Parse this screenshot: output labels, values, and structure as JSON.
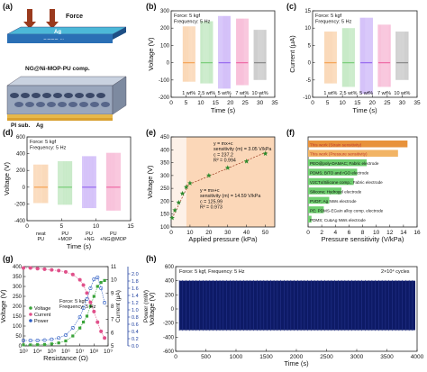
{
  "panels": [
    {
      "id": "a",
      "letter": "(a)"
    },
    {
      "id": "b",
      "letter": "(b)"
    },
    {
      "id": "c",
      "letter": "(c)"
    },
    {
      "id": "d",
      "letter": "(d)"
    },
    {
      "id": "e",
      "letter": "(e)"
    },
    {
      "id": "f",
      "letter": "(f)"
    },
    {
      "id": "g",
      "letter": "(g)"
    },
    {
      "id": "h",
      "letter": "(h)"
    }
  ],
  "schematic": {
    "force_label": "Force",
    "ag_label": "Ag",
    "ptfe_label": "PTFE film",
    "composite_label": "NG@Ni-MOP-PU comp.",
    "substrate_label": "PI sub.",
    "ag_bottom_label": "Ag"
  },
  "colors": {
    "orange": "#f5a65b",
    "green": "#7dce7d",
    "purple": "#9b6ff0",
    "pink": "#ef6fa8",
    "gray": "#8c8c8c",
    "brown": "#9a3a1e",
    "darkgreen": "#2e8b2e",
    "blue": "#1f2f8f",
    "navy": "#0d1a66"
  },
  "chart_data": [
    {
      "panel": "b",
      "type": "bar",
      "annotations": [
        "Force: 5 kgf",
        "Frequency: 5 Hz"
      ],
      "xlabel": "Time (s)",
      "ylabel": "Voltage (V)",
      "xlim": [
        0,
        35
      ],
      "ylim": [
        -200,
        300
      ],
      "xticks": [
        0,
        5,
        10,
        15,
        20,
        25,
        30,
        35
      ],
      "yticks": [
        -200,
        -100,
        0,
        100,
        200,
        300
      ],
      "series": [
        {
          "name": "1 wt%",
          "x_start": 4,
          "x_end": 8,
          "max": 210,
          "min": -110
        },
        {
          "name": "2.5 wt%",
          "x_start": 10,
          "x_end": 14,
          "max": 240,
          "min": -120
        },
        {
          "name": "5 wt%",
          "x_start": 16,
          "x_end": 20,
          "max": 270,
          "min": -150
        },
        {
          "name": "7 wt%",
          "x_start": 22,
          "x_end": 26,
          "max": 255,
          "min": -130
        },
        {
          "name": "10 wt%",
          "x_start": 28,
          "x_end": 32,
          "max": 190,
          "min": -100
        }
      ]
    },
    {
      "panel": "c",
      "type": "bar",
      "annotations": [
        "Force: 5 kgf",
        "Frequency: 5 Hz"
      ],
      "xlabel": "Time (s)",
      "ylabel": "Current (μA)",
      "xlim": [
        0,
        35
      ],
      "ylim": [
        -10,
        15
      ],
      "xticks": [
        0,
        5,
        10,
        15,
        20,
        25,
        30,
        35
      ],
      "yticks": [
        -10,
        -5,
        0,
        5,
        10,
        15
      ],
      "series": [
        {
          "name": "1 wt%",
          "x_start": 4,
          "x_end": 8,
          "max": 9,
          "min": -6
        },
        {
          "name": "2.5 wt%",
          "x_start": 10,
          "x_end": 14,
          "max": 10,
          "min": -7
        },
        {
          "name": "5 wt%",
          "x_start": 16,
          "x_end": 20,
          "max": 13,
          "min": -9
        },
        {
          "name": "7 wt%",
          "x_start": 22,
          "x_end": 26,
          "max": 11,
          "min": -7
        },
        {
          "name": "10 wt%",
          "x_start": 28,
          "x_end": 32,
          "max": 9,
          "min": -5
        }
      ]
    },
    {
      "panel": "d",
      "type": "bar",
      "annotations": [
        "Force: 5 kgf",
        "Frequency: 5 Hz"
      ],
      "xlabel": "Time (s)",
      "ylabel": "Voltage (V)",
      "xlim": [
        0,
        15
      ],
      "ylim": [
        -400,
        600
      ],
      "xticks": [
        0,
        5,
        10,
        15
      ],
      "yticks": [
        -400,
        -200,
        0,
        200,
        400,
        600
      ],
      "series": [
        {
          "name_lines": [
            "neat",
            "PU"
          ],
          "x_start": 1,
          "x_end": 3,
          "max": 270,
          "min": -190
        },
        {
          "name_lines": [
            "PU",
            "+MOP"
          ],
          "x_start": 4.5,
          "x_end": 6.5,
          "max": 310,
          "min": -210
        },
        {
          "name_lines": [
            "PU",
            "+NG"
          ],
          "x_start": 8,
          "x_end": 10,
          "max": 370,
          "min": -250
        },
        {
          "name_lines": [
            "PU",
            "+NG@MOP"
          ],
          "x_start": 11.5,
          "x_end": 13.5,
          "max": 410,
          "min": -280
        }
      ]
    },
    {
      "panel": "e",
      "type": "scatter",
      "xlabel": "Applied pressure (kPa)",
      "ylabel": "Voltage (V)",
      "xlim": [
        0,
        55
      ],
      "ylim": [
        100,
        450
      ],
      "xticks": [
        0,
        10,
        20,
        30,
        40,
        50
      ],
      "yticks": [
        100,
        150,
        200,
        250,
        300,
        350,
        400,
        450
      ],
      "x": [
        0.5,
        2,
        4,
        6,
        8,
        10,
        20,
        30,
        40,
        50
      ],
      "y": [
        135,
        165,
        195,
        230,
        255,
        270,
        300,
        330,
        355,
        385
      ],
      "fit_high": {
        "lines": [
          "y = mx+c",
          "sensitivity (m) = 3.05 V/kPa",
          "c = 237.2",
          "R² = 0.994"
        ]
      },
      "fit_low": {
        "lines": [
          "y = mx+c",
          "sensitivity (m) = 14.59 V/kPa",
          "c = 125.99",
          "R² = 0.973"
        ]
      }
    },
    {
      "panel": "f",
      "type": "bar",
      "xlabel": "Pressure sensitivity (V/kPa)",
      "xlim": [
        0,
        16
      ],
      "xticks": [
        0,
        2,
        4,
        6,
        8,
        10,
        12,
        14,
        16
      ],
      "categories": [
        "This work (Strain sensitivity)",
        "This work (Pressure sensitivity)",
        "PEO@poly-DAMAC; Fabric electrode",
        "PDMS; BiTO and rGO electrode",
        "V2CTx/Silicone comp.; Fabric electrode",
        "Silicone; Hydrogel electrode",
        "PVDF; Ag NWs electrode",
        "PE; PDMS-EGaIn alloy comp. electrode",
        "PDMS; Cu&Ag NWs electrode"
      ],
      "values": [
        14.59,
        13.2,
        8.6,
        7.2,
        6.7,
        4.9,
        3.1,
        2.3,
        0.5
      ]
    },
    {
      "panel": "g",
      "type": "line",
      "annotations": [
        "Force: 5 kgf",
        "Frequency: 5 Hz"
      ],
      "xlabel": "Resistance (Ω)",
      "ylabel": "Voltage (V)",
      "ylabel_right1": "Current (μA)",
      "ylabel_right2": "Power (mW)",
      "xlog": true,
      "xlim_exp": [
        3,
        9
      ],
      "xtick_labels": [
        "10³",
        "10⁴",
        "10⁵",
        "10⁶",
        "10⁷",
        "10⁸",
        "10⁹"
      ],
      "ylim": [
        0,
        400
      ],
      "yticks": [
        0,
        50,
        100,
        150,
        200,
        250,
        300,
        350,
        400
      ],
      "ylim_right1": [
        5,
        11
      ],
      "yticks_right1": [
        5,
        6,
        7,
        8,
        9,
        10,
        11
      ],
      "ylim_right2": [
        0,
        2.2
      ],
      "yticks_right2": [
        0.0,
        0.2,
        0.4,
        0.6,
        0.8,
        1.0,
        1.2,
        1.4,
        1.6,
        1.8,
        2.0
      ],
      "x_exp": [
        3,
        3.5,
        4,
        4.5,
        5,
        5.5,
        6,
        6.5,
        7,
        7.25,
        7.5,
        7.75,
        8,
        8.25,
        8.5,
        8.75
      ],
      "series": [
        {
          "name": "Voltage",
          "values": [
            5,
            5,
            6,
            7,
            10,
            15,
            25,
            50,
            90,
            120,
            150,
            200,
            250,
            300,
            320,
            330
          ]
        },
        {
          "name": "Current",
          "values": [
            10.9,
            10.9,
            10.85,
            10.8,
            10.75,
            10.7,
            10.6,
            10.4,
            10,
            9.6,
            9,
            8.3,
            7.6,
            6.8,
            6.1,
            5.6
          ]
        },
        {
          "name": "Power",
          "values": [
            0.15,
            0.15,
            0.15,
            0.16,
            0.18,
            0.22,
            0.3,
            0.5,
            0.8,
            1.05,
            1.3,
            1.6,
            1.85,
            1.9,
            1.6,
            1.2
          ]
        }
      ]
    },
    {
      "panel": "h",
      "type": "area",
      "annotations": [
        "Force: 5 kgf, Frequency: 5 Hz",
        "2×10⁴ cycles"
      ],
      "xlabel": "Time (s)",
      "ylabel": "Voltage (V)",
      "xlim": [
        0,
        4000
      ],
      "ylim": [
        -600,
        600
      ],
      "xticks": [
        0,
        500,
        1000,
        1500,
        2000,
        2500,
        3000,
        3500,
        4000
      ],
      "yticks": [
        -600,
        -400,
        -200,
        0,
        200,
        400,
        600
      ],
      "band_max": 400,
      "band_min": -300
    }
  ]
}
